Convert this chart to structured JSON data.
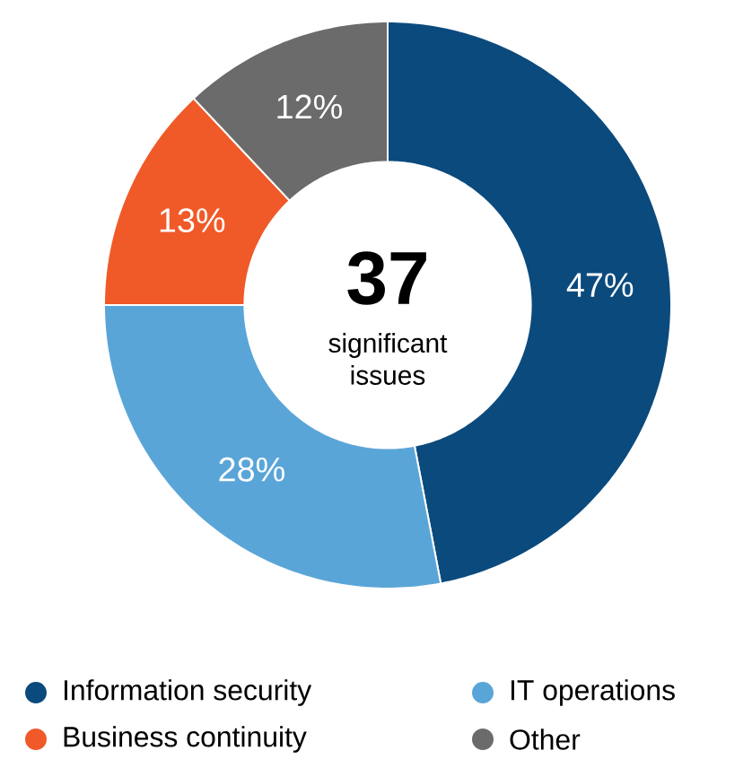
{
  "chart_data": {
    "type": "donut",
    "categories": [
      "Information security",
      "IT operations",
      "Business continuity",
      "Other"
    ],
    "values": [
      47,
      28,
      13,
      12
    ],
    "colors": [
      "#0b4a7d",
      "#5aa5d8",
      "#f05a28",
      "#6b6b6b"
    ],
    "value_labels": [
      "47%",
      "28%",
      "13%",
      "12%"
    ],
    "annotations": [
      "37",
      "significant issues"
    ],
    "legend": "bottom"
  }
}
